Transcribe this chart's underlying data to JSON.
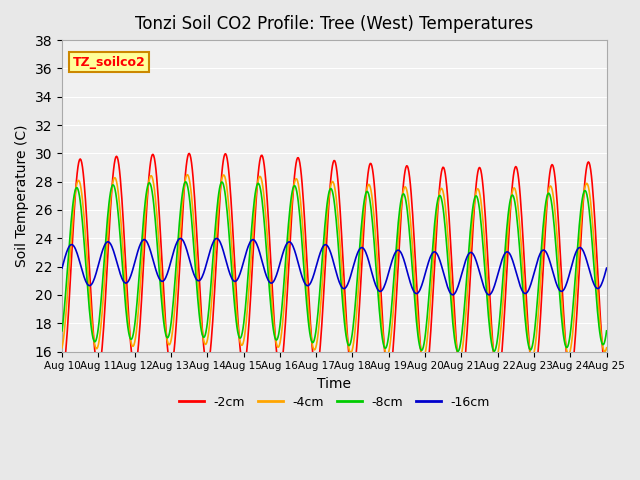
{
  "title": "Tonzi Soil CO2 Profile: Tree (West) Temperatures",
  "ylabel": "Soil Temperature (C)",
  "xlabel": "Time",
  "ylim": [
    16,
    38
  ],
  "yticks": [
    16,
    18,
    20,
    22,
    24,
    26,
    28,
    30,
    32,
    34,
    36,
    38
  ],
  "xlim_days": [
    0,
    15
  ],
  "colors": {
    "-2cm": "#ff0000",
    "-4cm": "#ffa500",
    "-8cm": "#00cc00",
    "-16cm": "#0000cc"
  },
  "legend_label": "TZ_soilco2",
  "background_color": "#e8e8e8",
  "plot_bg": "#f0f0f0",
  "n_days": 15,
  "samples_per_day": 48,
  "base_temp": 22.0,
  "amplitude_2cm": 7.5,
  "amplitude_4cm": 6.0,
  "amplitude_8cm": 5.5,
  "amplitude_16cm": 1.5,
  "phase_2cm": 0.0,
  "phase_4cm": 0.3,
  "phase_8cm": 0.5,
  "phase_16cm": 1.2,
  "trend": 0.0,
  "x_tick_labels": [
    "Aug 10",
    "Aug 11",
    "Aug 12",
    "Aug 13",
    "Aug 14",
    "Aug 15",
    "Aug 16",
    "Aug 17",
    "Aug 18",
    "Aug 19",
    "Aug 20",
    "Aug 21",
    "Aug 22",
    "Aug 23",
    "Aug 24",
    "Aug 25"
  ]
}
